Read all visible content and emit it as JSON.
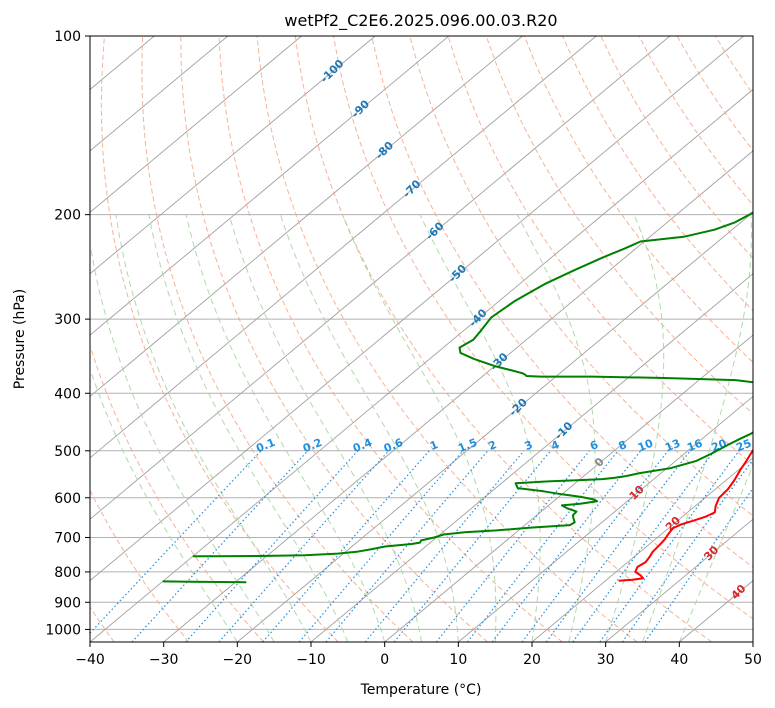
{
  "chart_data": {
    "type": "line",
    "title": "wetPf2_C2E6.2025.096.00.03.R20",
    "xlabel": "Temperature (°C)",
    "ylabel": "Pressure (hPa)",
    "xlim": [
      -40,
      50
    ],
    "ylim": [
      1050,
      100
    ],
    "y_scale": "log",
    "x_ticks": [
      -40,
      -30,
      -20,
      -10,
      0,
      10,
      20,
      30,
      40,
      50
    ],
    "x_tick_labels": [
      "−40",
      "−30",
      "−20",
      "−10",
      "0",
      "10",
      "20",
      "30",
      "40",
      "50"
    ],
    "y_ticks": [
      100,
      200,
      300,
      400,
      500,
      600,
      700,
      800,
      900,
      1000
    ],
    "y_tick_labels": [
      "100",
      "200",
      "300",
      "400",
      "500",
      "600",
      "700",
      "800",
      "900",
      "1000"
    ],
    "grid": true,
    "colors": {
      "temperature": "#ff0000",
      "dewpoint": "#008000",
      "isotherm": "#a0a0a0",
      "dry_adiabat": "#f4a582",
      "moist_adiabat": "#a6d5a0",
      "mixing_ratio": "#1f8fe0",
      "isotherm_label": "#1f77b4",
      "warm_label": "#d62728"
    },
    "series": [
      {
        "kind": "temperature",
        "points": [
          [
            5.5,
            100
          ],
          [
            5.6,
            105
          ],
          [
            5.2,
            112
          ],
          [
            4.4,
            118
          ],
          [
            4.8,
            125
          ],
          [
            5.6,
            135
          ],
          [
            6.2,
            150
          ],
          [
            6.9,
            170
          ],
          [
            7.6,
            190
          ],
          [
            8.3,
            210
          ],
          [
            9.1,
            230
          ],
          [
            10.4,
            250
          ],
          [
            11.8,
            270
          ],
          [
            12.7,
            290
          ],
          [
            13.5,
            310
          ],
          [
            14.1,
            330
          ],
          [
            15.2,
            345
          ],
          [
            16.6,
            355
          ],
          [
            17.3,
            362
          ],
          [
            16.6,
            368
          ],
          [
            15.5,
            375
          ],
          [
            15.2,
            385
          ],
          [
            15.8,
            410
          ],
          [
            16.6,
            440
          ],
          [
            17.4,
            460
          ],
          [
            18.1,
            480
          ],
          [
            18.8,
            500
          ],
          [
            19.6,
            520
          ],
          [
            20.3,
            540
          ],
          [
            21.1,
            560
          ],
          [
            21.7,
            580
          ],
          [
            21.9,
            600
          ],
          [
            22.8,
            620
          ],
          [
            23.7,
            635
          ],
          [
            23.2,
            645
          ],
          [
            22.2,
            655
          ],
          [
            21.1,
            665
          ],
          [
            20.6,
            675
          ],
          [
            20.9,
            690
          ],
          [
            21.3,
            705
          ],
          [
            21.5,
            720
          ],
          [
            21.7,
            740
          ],
          [
            22.1,
            755
          ],
          [
            22.4,
            770
          ],
          [
            22.1,
            785
          ],
          [
            22.6,
            800
          ],
          [
            23.8,
            810
          ],
          [
            24.7,
            820
          ],
          [
            23.5,
            825
          ],
          [
            21.8,
            828
          ]
        ]
      },
      {
        "kind": "dewpoint",
        "points": [
          [
            0,
            100
          ],
          [
            -2,
            108
          ],
          [
            -4,
            115
          ],
          [
            -5.6,
            122
          ],
          [
            -7,
            132
          ],
          [
            -7.7,
            142
          ],
          [
            -8.4,
            150
          ],
          [
            -12,
            160
          ],
          [
            -15.8,
            170
          ],
          [
            -17,
            178
          ],
          [
            -17.8,
            186
          ],
          [
            -19.3,
            193
          ],
          [
            -19.8,
            197
          ],
          [
            -20.1,
            200
          ],
          [
            -20.8,
            206
          ],
          [
            -22.4,
            212
          ],
          [
            -25.4,
            218
          ],
          [
            -30.5,
            222
          ],
          [
            -31.5,
            228
          ],
          [
            -33,
            236
          ],
          [
            -34.8,
            248
          ],
          [
            -36.6,
            262
          ],
          [
            -37.9,
            280
          ],
          [
            -38.4,
            298
          ],
          [
            -37.6,
            315
          ],
          [
            -37.2,
            325
          ],
          [
            -37.8,
            335
          ],
          [
            -36.8,
            342
          ],
          [
            -34,
            350
          ],
          [
            -30,
            360
          ],
          [
            -27,
            366
          ],
          [
            -25.1,
            370
          ],
          [
            -24.5,
            372
          ],
          [
            -24.1,
            374
          ],
          [
            -22,
            375
          ],
          [
            -15,
            375
          ],
          [
            -5,
            377
          ],
          [
            5,
            380
          ],
          [
            10,
            386
          ],
          [
            13,
            396
          ],
          [
            14.9,
            410
          ],
          [
            15.9,
            425
          ],
          [
            16.1,
            440
          ],
          [
            16,
            455
          ],
          [
            15.8,
            468
          ],
          [
            15.1,
            478
          ],
          [
            14.4,
            490
          ],
          [
            13.7,
            505
          ],
          [
            12.8,
            520
          ],
          [
            10.5,
            535
          ],
          [
            7.2,
            545
          ],
          [
            5.6,
            552
          ],
          [
            4.5,
            555
          ],
          [
            3,
            558
          ],
          [
            0.5,
            560
          ],
          [
            -4,
            563
          ],
          [
            -8.1,
            567
          ],
          [
            -7,
            578
          ],
          [
            -3,
            585
          ],
          [
            0,
            592
          ],
          [
            3,
            598
          ],
          [
            5.2,
            604
          ],
          [
            5.9,
            608
          ],
          [
            4,
            614
          ],
          [
            1.8,
            618
          ],
          [
            3,
            625
          ],
          [
            4.8,
            633
          ],
          [
            4.9,
            642
          ],
          [
            5.5,
            650
          ],
          [
            6.3,
            660
          ],
          [
            6.1,
            667
          ],
          [
            1,
            674
          ],
          [
            -3,
            681
          ],
          [
            -7,
            686
          ],
          [
            -9.5,
            692
          ],
          [
            -10.3,
            700
          ],
          [
            -11.6,
            708
          ],
          [
            -11.4,
            714
          ],
          [
            -12.3,
            718
          ],
          [
            -15.5,
            725
          ],
          [
            -17,
            733
          ],
          [
            -18.5,
            740
          ],
          [
            -20.8,
            745
          ],
          [
            -25,
            750
          ],
          [
            -31,
            752
          ],
          [
            -37,
            753
          ],
          [
            -40,
            753
          ]
        ]
      },
      {
        "kind": "dewpoint-lower",
        "points": [
          [
            -40,
            830
          ],
          [
            -36,
            831
          ],
          [
            -32,
            832
          ],
          [
            -28.5,
            833
          ]
        ]
      }
    ],
    "isotherm_labels": [
      "-100",
      "-90",
      "-80",
      "-70",
      "-60",
      "-50",
      "-40",
      "-30",
      "-20",
      "-10",
      "0",
      "10",
      "20",
      "30",
      "40"
    ],
    "mixing_ratio_labels": [
      "0.1",
      "0.2",
      "0.4",
      "0.6",
      "1",
      "1.5",
      "2",
      "3",
      "4",
      "6",
      "8",
      "10",
      "13",
      "16",
      "20",
      "25",
      "30",
      "36"
    ]
  }
}
